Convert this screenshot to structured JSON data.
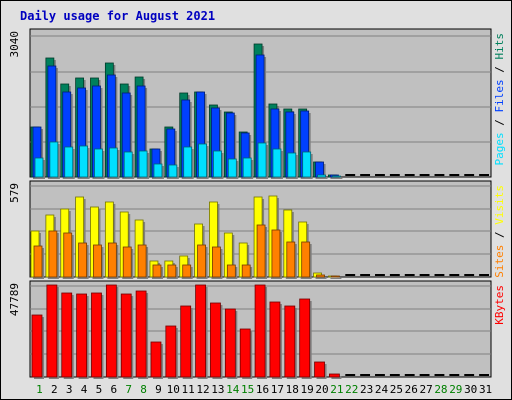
{
  "chart_data": {
    "type": "bar",
    "title": "Daily usage for August 2021",
    "categories": [
      "1",
      "2",
      "3",
      "4",
      "5",
      "6",
      "7",
      "8",
      "9",
      "10",
      "11",
      "12",
      "13",
      "14",
      "15",
      "16",
      "17",
      "18",
      "19",
      "20",
      "21",
      "22",
      "23",
      "24",
      "25",
      "26",
      "27",
      "28",
      "29",
      "30",
      "31"
    ],
    "weekend_days": [
      "1",
      "7",
      "8",
      "14",
      "15",
      "21",
      "22",
      "28",
      "29"
    ],
    "colors": {
      "title": "#0000c0",
      "weekday_tick": "#000000",
      "weekend_tick": "#008000",
      "hits": "#00805c",
      "files": "#0040ff",
      "pages": "#00e0ff",
      "visits": "#ffff00",
      "sites": "#ff8000",
      "kbytes": "#ff0000"
    },
    "panels": [
      {
        "name": "hits-files-pages",
        "ymax_label": "3040",
        "ymax": 3040,
        "labels": [
          "Pages",
          "Files",
          "Hits"
        ],
        "series": [
          {
            "name": "Hits",
            "values": [
              1360,
              3260,
              2540,
              2700,
              2710,
              3110,
              2540,
              2730,
              770,
              1370,
              2300,
              2340,
              1970,
              1780,
              1220,
              3650,
              1990,
              1850,
              1860,
              420,
              60,
              0,
              0,
              0,
              0,
              0,
              0,
              0,
              0,
              0,
              0
            ]
          },
          {
            "name": "Files",
            "values": [
              1360,
              3040,
              2320,
              2440,
              2500,
              2780,
              2300,
              2490,
              770,
              1320,
              2110,
              2340,
              1900,
              1760,
              1200,
              3350,
              1870,
              1770,
              1800,
              420,
              60,
              0,
              0,
              0,
              0,
              0,
              0,
              0,
              0,
              0,
              0
            ]
          },
          {
            "name": "Pages",
            "values": [
              520,
              970,
              830,
              840,
              780,
              800,
              690,
              720,
              360,
              320,
              820,
              900,
              700,
              500,
              510,
              920,
              760,
              660,
              680,
              60,
              20,
              0,
              0,
              0,
              0,
              0,
              0,
              0,
              0,
              0,
              0
            ]
          }
        ]
      },
      {
        "name": "visits-sites",
        "ymax_label": "579",
        "ymax": 579,
        "labels": [
          "Sites",
          "Visits"
        ],
        "series": [
          {
            "name": "Visits",
            "values": [
              370,
              500,
              550,
              640,
              560,
              600,
              520,
              460,
              130,
              130,
              170,
              430,
              600,
              350,
              270,
              640,
              650,
              540,
              440,
              30,
              10,
              0,
              0,
              0,
              0,
              0,
              0,
              0,
              0,
              0,
              0
            ]
          },
          {
            "name": "Sites",
            "values": [
              250,
              370,
              350,
              270,
              260,
              270,
              240,
              260,
              100,
              100,
              100,
              260,
              240,
              100,
              100,
              420,
              380,
              280,
              280,
              20,
              10,
              0,
              0,
              0,
              0,
              0,
              0,
              0,
              0,
              0,
              0
            ]
          }
        ]
      },
      {
        "name": "kbytes",
        "ymax_label": "47789",
        "ymax": 47789,
        "labels": [
          "KBytes"
        ],
        "series": [
          {
            "name": "KBytes",
            "values": [
              41000,
              74000,
              56000,
              55000,
              56000,
              66000,
              55000,
              57000,
              23000,
              34000,
              47000,
              62000,
              49000,
              45000,
              32000,
              75000,
              50000,
              47000,
              52000,
              10000,
              2000,
              0,
              0,
              0,
              0,
              0,
              0,
              0,
              0,
              0,
              0
            ]
          }
        ]
      }
    ]
  }
}
